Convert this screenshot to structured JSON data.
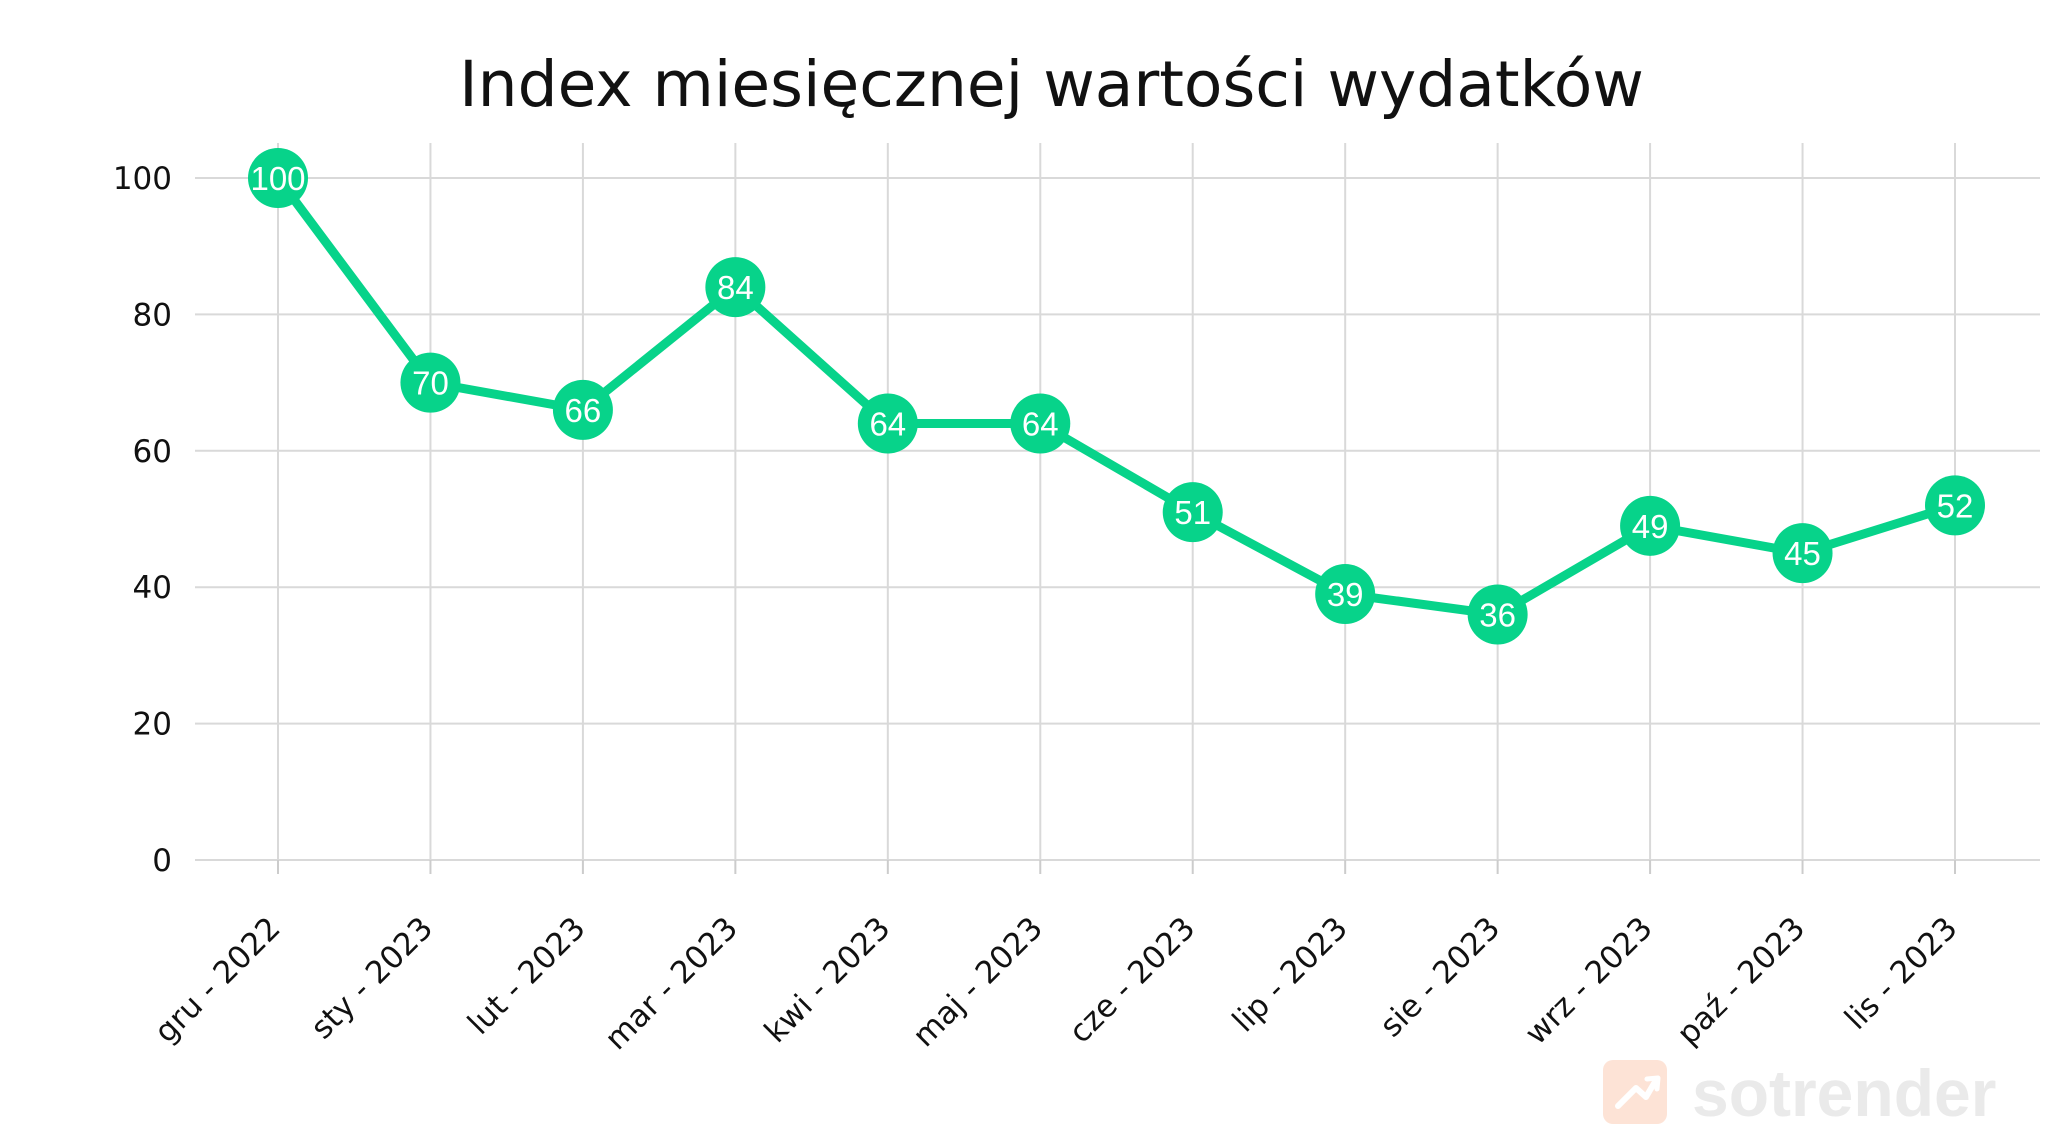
{
  "chart_data": {
    "type": "line",
    "title": "Index miesięcznej wartości wydatków",
    "xlabel": "",
    "ylabel": "",
    "categories": [
      "gru - 2022",
      "sty - 2023",
      "lut - 2023",
      "mar - 2023",
      "kwi - 2023",
      "maj - 2023",
      "cze - 2023",
      "lip - 2023",
      "sie - 2023",
      "wrz - 2023",
      "paź - 2023",
      "lis - 2023"
    ],
    "series": [
      {
        "values": [
          100,
          70,
          66,
          84,
          64,
          64,
          51,
          39,
          36,
          49,
          45,
          52
        ]
      }
    ],
    "ylim": [
      0,
      100
    ],
    "yticks": [
      0,
      20,
      40,
      60,
      80,
      100
    ],
    "grid": true,
    "data_labels": true,
    "colors": {
      "line": "#07d38a",
      "grid": "#d9d9d9",
      "label": "#ffffff"
    }
  },
  "watermark": {
    "brand": "sotrender",
    "icon": "trend-up-icon"
  }
}
